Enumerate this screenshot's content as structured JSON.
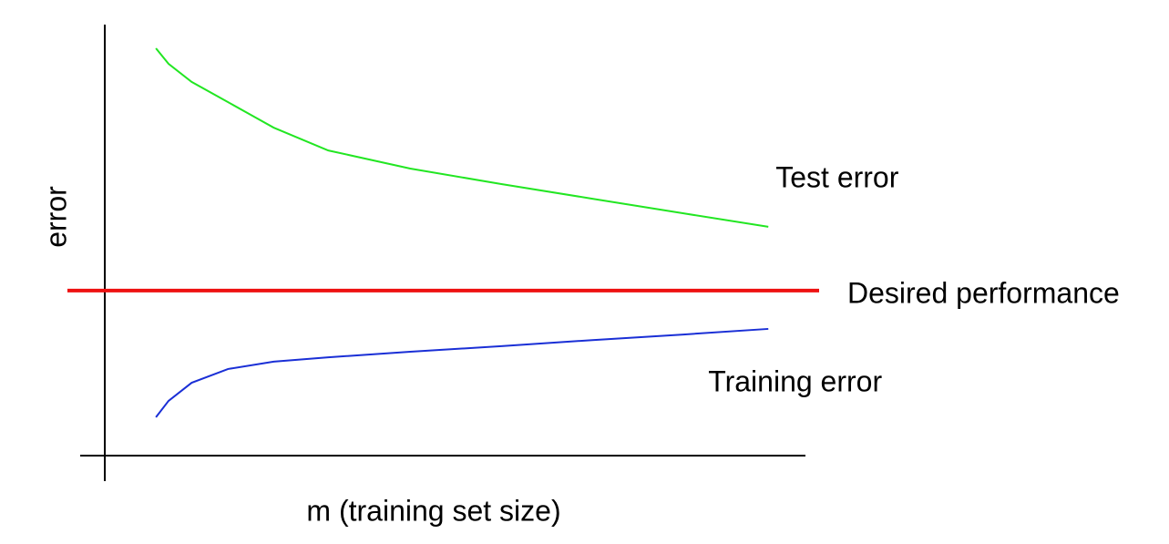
{
  "chart_data": {
    "type": "line",
    "xlabel": "m (training set size)",
    "ylabel": "error",
    "x": [
      7.3,
      9.1,
      12.4,
      17.6,
      24.1,
      31.9,
      43.6,
      56.6,
      69.6,
      82.6,
      94.7
    ],
    "series": [
      {
        "name": "Test error",
        "color": "#22e622",
        "values": [
          94.5,
          90.9,
          86.7,
          82.0,
          76.1,
          70.8,
          66.6,
          63.0,
          59.6,
          56.2,
          53.1
        ]
      },
      {
        "name": "Training error",
        "color": "#1a2fd6",
        "values": [
          8.9,
          12.7,
          16.9,
          20.1,
          21.8,
          22.8,
          24.1,
          25.4,
          26.8,
          28.1,
          29.4
        ]
      }
    ],
    "reference_lines": [
      {
        "name": "Desired performance",
        "color": "#ee1111",
        "value": 38.3
      }
    ],
    "xlim": [
      0,
      100
    ],
    "ylim": [
      0,
      100
    ]
  }
}
